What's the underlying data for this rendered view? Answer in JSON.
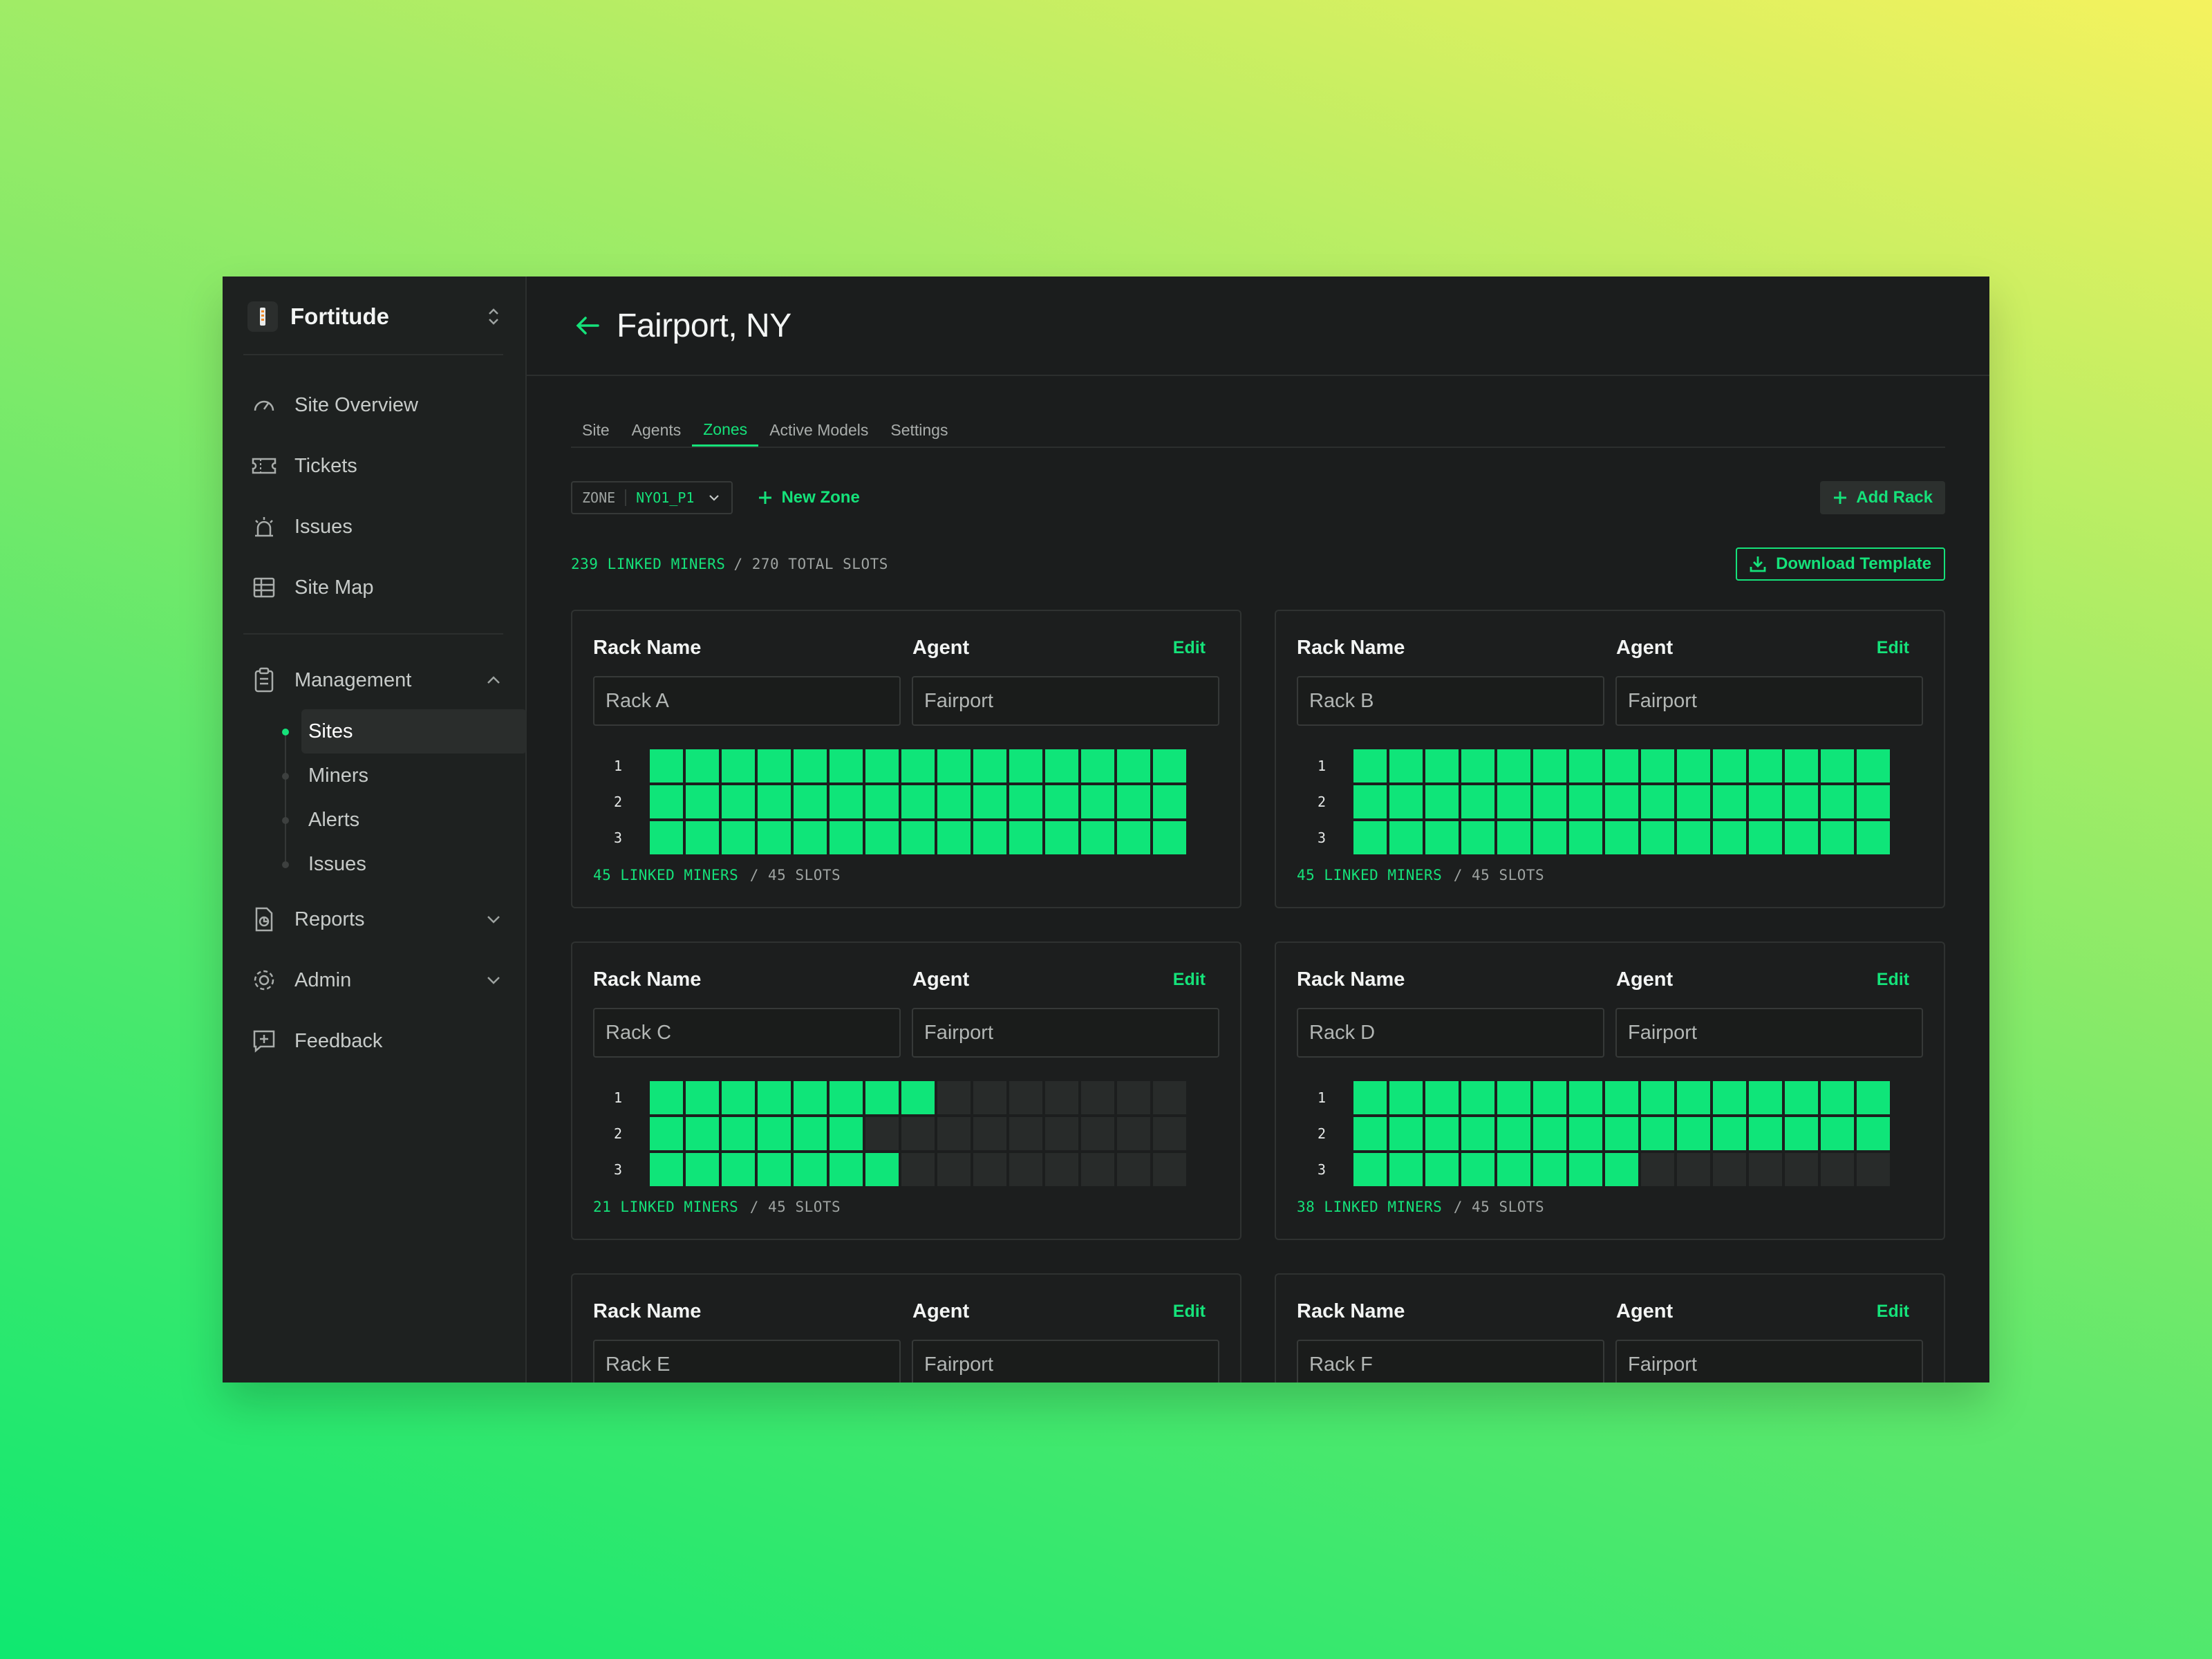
{
  "colors": {
    "accent": "#15e27a",
    "slot_on": "#0fe579",
    "slot_off": "#282b2a",
    "panel": "#1b1d1d"
  },
  "sidebar": {
    "brand": "Fortitude",
    "items": [
      {
        "label": "Site Overview",
        "icon": "gauge-icon"
      },
      {
        "label": "Tickets",
        "icon": "ticket-icon"
      },
      {
        "label": "Issues",
        "icon": "siren-icon"
      },
      {
        "label": "Site Map",
        "icon": "grid-icon"
      }
    ],
    "management": {
      "label": "Management",
      "children": [
        {
          "label": "Sites",
          "active": true
        },
        {
          "label": "Miners"
        },
        {
          "label": "Alerts"
        },
        {
          "label": "Issues"
        }
      ]
    },
    "reports": "Reports",
    "admin": "Admin",
    "feedback": "Feedback"
  },
  "header": {
    "title": "Fairport, NY"
  },
  "tabs": [
    "Site",
    "Agents",
    "Zones",
    "Active Models",
    "Settings"
  ],
  "active_tab": "Zones",
  "toolbar": {
    "zone_label": "ZONE",
    "zone_value": "NYO1_P1",
    "new_zone": "New Zone",
    "add_rack": "Add Rack",
    "download_template": "Download Template"
  },
  "summary": {
    "linked": "239 LINKED MINERS",
    "total": "/ 270 TOTAL SLOTS"
  },
  "rack_labels": {
    "name": "Rack Name",
    "agent": "Agent",
    "edit": "Edit"
  },
  "racks": [
    {
      "name": "Rack A",
      "agent": "Fairport",
      "rows": [
        15,
        15,
        15
      ],
      "linked": "45 LINKED MINERS",
      "slots": "/ 45 SLOTS"
    },
    {
      "name": "Rack B",
      "agent": "Fairport",
      "rows": [
        15,
        15,
        15
      ],
      "linked": "45 LINKED MINERS",
      "slots": "/ 45 SLOTS"
    },
    {
      "name": "Rack C",
      "agent": "Fairport",
      "rows": [
        8,
        6,
        7
      ],
      "linked": "21 LINKED MINERS",
      "slots": "/ 45 SLOTS"
    },
    {
      "name": "Rack D",
      "agent": "Fairport",
      "rows": [
        15,
        15,
        8
      ],
      "linked": "38 LINKED MINERS",
      "slots": "/ 45 SLOTS"
    },
    {
      "name": "Rack E",
      "agent": "Fairport",
      "rows": [],
      "linked": "",
      "slots": ""
    },
    {
      "name": "Rack F",
      "agent": "Fairport",
      "rows": [],
      "linked": "",
      "slots": ""
    }
  ],
  "slots_per_row": 15,
  "row_numbers": [
    "1",
    "2",
    "3"
  ]
}
